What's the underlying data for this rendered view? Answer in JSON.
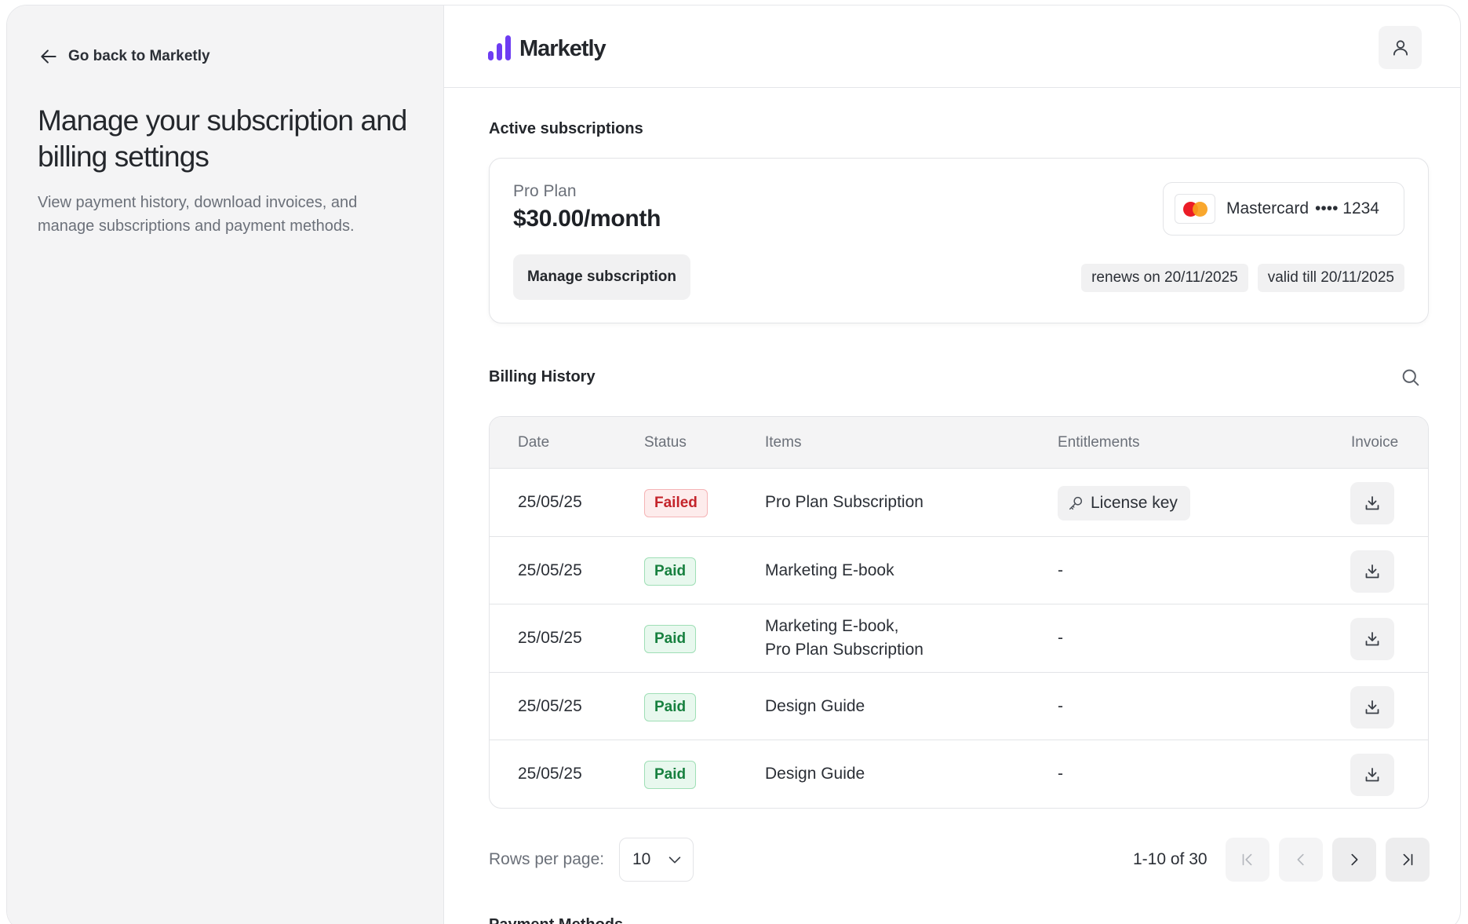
{
  "sidebar": {
    "back_label": "Go back to Marketly",
    "title": "Manage your subscription and billing settings",
    "description": "View payment history, download invoices, and manage subscriptions and payment methods."
  },
  "header": {
    "brand": "Marketly",
    "brand_color": "#6d3cf2",
    "profile_icon": "user-icon"
  },
  "active_subscriptions": {
    "title": "Active subscriptions",
    "plan_name": "Pro Plan",
    "price": "$30.00/month",
    "manage_label": "Manage subscription",
    "card_brand": "Mastercard",
    "card_masked": "•••• 1234",
    "renews": "renews on 20/11/2025",
    "valid": "valid till 20/11/2025"
  },
  "billing_history": {
    "title": "Billing History",
    "columns": {
      "date": "Date",
      "status": "Status",
      "items": "Items",
      "entitlements": "Entitlements",
      "invoice": "Invoice"
    },
    "rows": [
      {
        "date": "25/05/25",
        "status": "Failed",
        "items": [
          "Pro Plan Subscription"
        ],
        "entitlement": "License key"
      },
      {
        "date": "25/05/25",
        "status": "Paid",
        "items": [
          "Marketing E-book"
        ],
        "entitlement": "-"
      },
      {
        "date": "25/05/25",
        "status": "Paid",
        "items": [
          "Marketing E-book,",
          "Pro Plan Subscription"
        ],
        "entitlement": "-"
      },
      {
        "date": "25/05/25",
        "status": "Paid",
        "items": [
          "Design Guide"
        ],
        "entitlement": "-"
      },
      {
        "date": "25/05/25",
        "status": "Paid",
        "items": [
          "Design Guide"
        ],
        "entitlement": "-"
      }
    ]
  },
  "pagination": {
    "rows_label": "Rows per page:",
    "rows_value": "10",
    "range": "1-10 of 30"
  },
  "payment_methods": {
    "title": "Payment Methods"
  }
}
